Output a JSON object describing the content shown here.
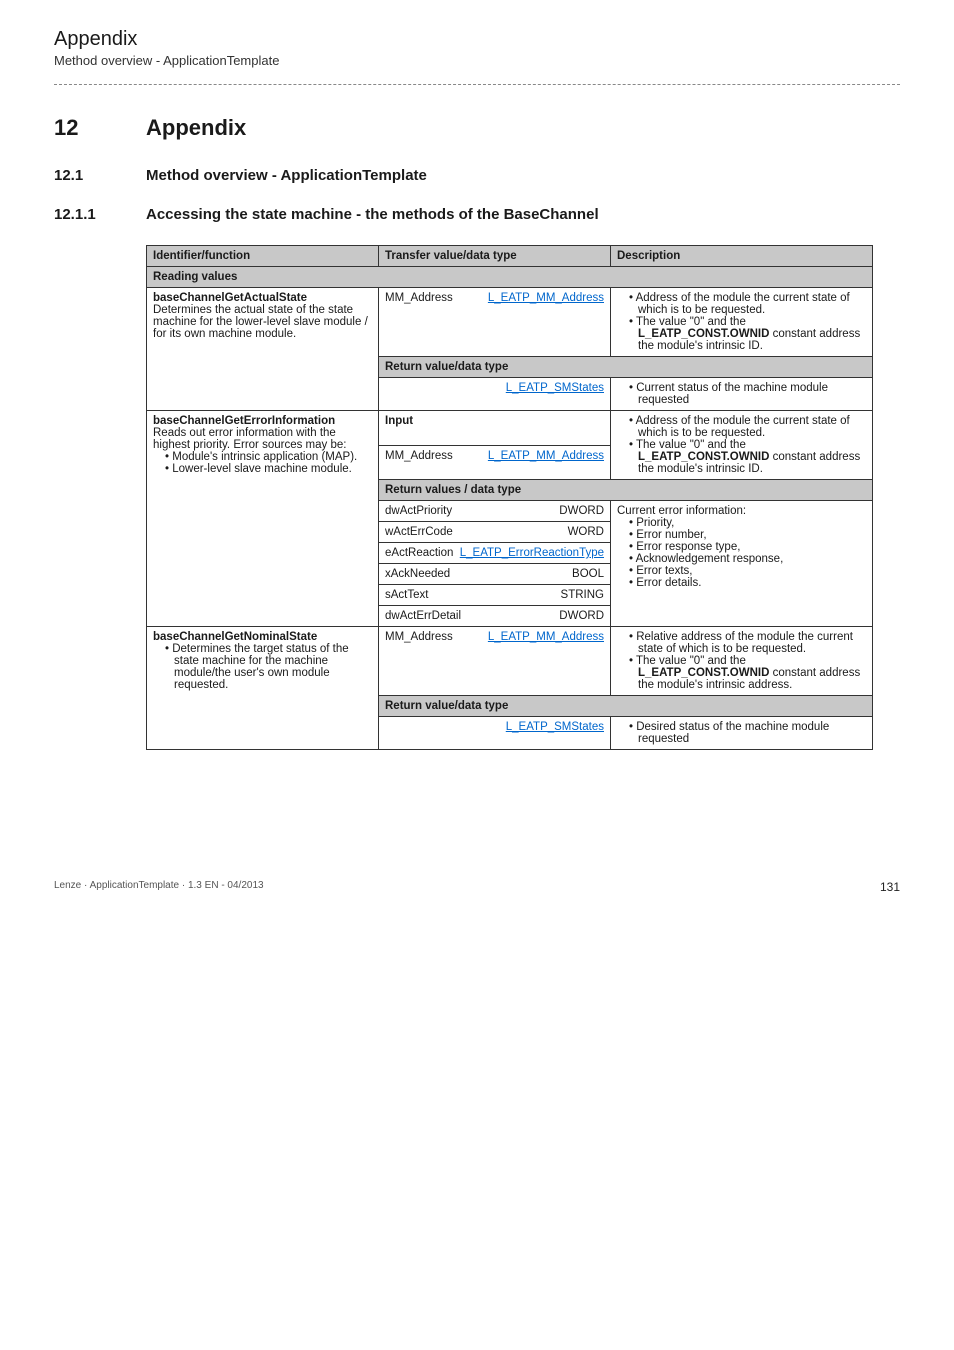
{
  "header": {
    "main": "Appendix",
    "sub": "Method overview - ApplicationTemplate"
  },
  "section": {
    "num": "12",
    "title": "Appendix"
  },
  "sub1": {
    "num": "12.1",
    "title": "Method overview - ApplicationTemplate"
  },
  "sub2": {
    "num": "12.1.1",
    "title": "Accessing the state machine - the methods of the BaseChannel"
  },
  "thead": {
    "c1": "Identifier/function",
    "c2": "Transfer value/data type",
    "c3": "Description"
  },
  "reading": "Reading values",
  "r1": {
    "idTitle": "baseChannelGetActualState",
    "idBody": "Determines the actual state of the state machine for the lower-level slave module / for its own machine module.",
    "tvLabel": "MM_Address",
    "tvLink": "L_EATP_MM_Address",
    "d1": "Address of the module the current state of which is to be requested.",
    "d2a": "The value \"0\" and the ",
    "d2b": "L_EATP_CONST.OWNID",
    "d2c": " constant address the module's intrinsic ID.",
    "retHdr": "Return value/data type",
    "retLink": "L_EATP_SMStates",
    "retDesc": "Current status of the machine module requested"
  },
  "r2": {
    "idTitle": "baseChannelGetErrorInformation",
    "idBody1": "Reads out error information with the highest priority. Error sources may be:",
    "idLi1": "Module's intrinsic application (MAP).",
    "idLi2": "Lower-level slave machine module.",
    "inLabel": "Input",
    "mmLabel": "MM_Address",
    "mmLink": "L_EATP_MM_Address",
    "d1": "Address of the module the current state of which is to be requested.",
    "d2a": "The value \"0\" and the ",
    "d2b": "L_EATP_CONST.OWNID",
    "d2c": " constant address the module's intrinsic ID.",
    "retHdr": "Return values / data type",
    "rv1n": "dwActPriority",
    "rv1t": "DWORD",
    "rv2n": "wActErrCode",
    "rv2t": "WORD",
    "rv3n": "eActReaction",
    "rv3t": "L_EATP_ErrorReactionType",
    "rv4n": "xAckNeeded",
    "rv4t": "BOOL",
    "rv5n": "sActText",
    "rv5t": "STRING",
    "rv6n": "dwActErrDetail",
    "rv6t": "DWORD",
    "descHdr": "Current error information:",
    "dli1": "Priority,",
    "dli2": "Error number,",
    "dli3": "Error response type,",
    "dli4": "Acknowledgement response,",
    "dli5": "Error texts,",
    "dli6": "Error details."
  },
  "r3": {
    "idTitle": "baseChannelGetNominalState",
    "idLi": "Determines the target status of the state machine for the machine module/the user's own module requested.",
    "tvLabel": "MM_Address",
    "tvLink": "L_EATP_MM_Address",
    "d1": "Relative address of the module the current state of which is to be requested.",
    "d2a": "The value \"0\" and the ",
    "d2b": "L_EATP_CONST.OWNID",
    "d2c": " constant address the module's intrinsic address.",
    "retHdr": "Return value/data type",
    "retLink": "L_EATP_SMStates",
    "retDesc": "Desired status of the machine module requested"
  },
  "footer": {
    "left": "Lenze · ApplicationTemplate · 1.3 EN - 04/2013",
    "page": "131"
  }
}
